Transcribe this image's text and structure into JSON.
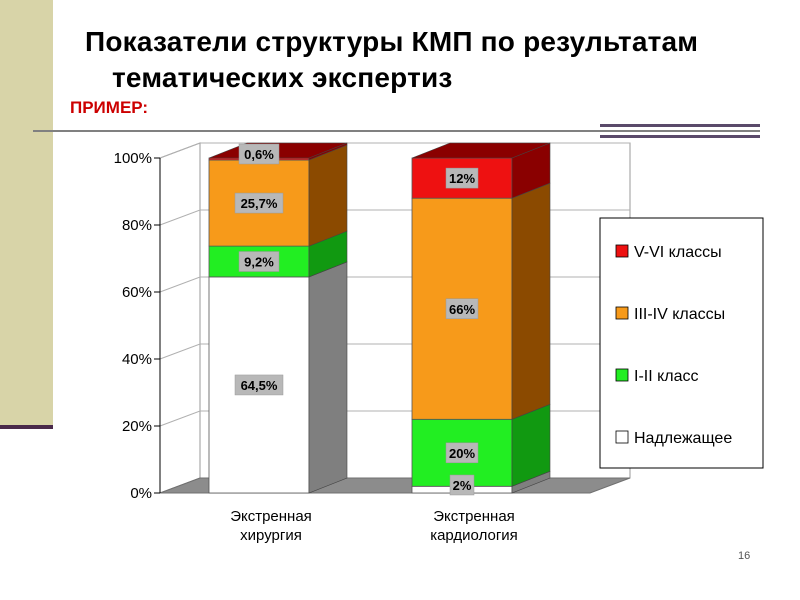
{
  "slide": {
    "title_line1": "Показатели структуры КМП по результатам",
    "title_line2": "тематических экспертиз",
    "subtitle": "ПРИМЕР:",
    "page_number": "16"
  },
  "chart_data": {
    "type": "bar",
    "stacked": true,
    "three_d": true,
    "categories": [
      "Экстренная хирургия",
      "Экстренная кардиология"
    ],
    "category_lines": [
      [
        "Экстренная",
        "хирургия"
      ],
      [
        "Экстренная",
        "кардиология"
      ]
    ],
    "yaxis": {
      "min": 0,
      "max": 100,
      "step": 20,
      "unit": "%",
      "tick_labels": [
        "0%",
        "20%",
        "40%",
        "60%",
        "80%",
        "100%"
      ]
    },
    "legend_position": "right",
    "series": [
      {
        "name": "Надлежащее",
        "color": "#ffffff",
        "side_color": "#7f7f7f",
        "values": [
          64.5,
          2
        ],
        "labels": [
          "64,5%",
          "2%"
        ]
      },
      {
        "name": "I-II класс",
        "color": "#22ee22",
        "side_color": "#119911",
        "values": [
          9.2,
          20
        ],
        "labels": [
          "9,2%",
          "20%"
        ]
      },
      {
        "name": "III-IV классы",
        "color": "#f79a1a",
        "side_color": "#8b4a00",
        "values": [
          25.7,
          66
        ],
        "labels": [
          "25,7%",
          "66%"
        ]
      },
      {
        "name": "V-VI классы",
        "color": "#ee1111",
        "side_color": "#8a0000",
        "values": [
          0.6,
          12
        ],
        "labels": [
          "0,6%",
          "12%"
        ]
      }
    ],
    "legend_order": [
      "V-VI классы",
      "III-IV классы",
      "I-II класс",
      "Надлежащее"
    ]
  }
}
